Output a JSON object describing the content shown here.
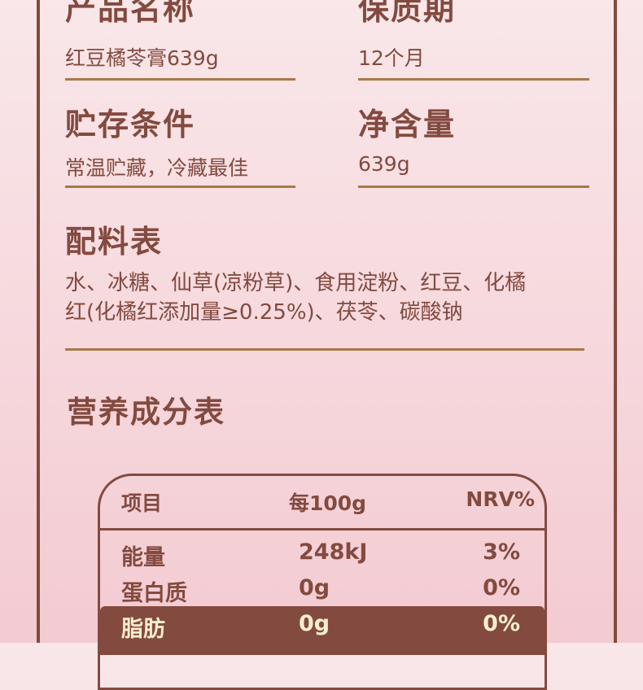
{
  "info": [
    {
      "label": "产品名称",
      "value": "红豆橘苓膏639g"
    },
    {
      "label": "保质期",
      "value": "12个月"
    },
    {
      "label": "贮存条件",
      "value": "常温贮藏，冷藏最佳"
    },
    {
      "label": "净含量",
      "value": "639g"
    }
  ],
  "ingredients": {
    "title": "配料表",
    "lines": [
      "水、冰糖、仙草(凉粉草)、食用淀粉、红豆、化橘",
      "红(化橘红添加量≥0.25%)、茯苓、碳酸钠"
    ]
  },
  "nutrition": {
    "title": "营养成分表",
    "headers": [
      "项目",
      "每100g",
      "NRV%"
    ],
    "rows": [
      [
        "能量",
        "248kJ",
        "3%"
      ],
      [
        "蛋白质",
        "0g",
        "0%"
      ],
      [
        "脂肪",
        "0g",
        "0%"
      ]
    ]
  },
  "colors": {
    "text": "#834a3f",
    "rule": "#a87848",
    "highlight_text": "#f9eecb"
  }
}
